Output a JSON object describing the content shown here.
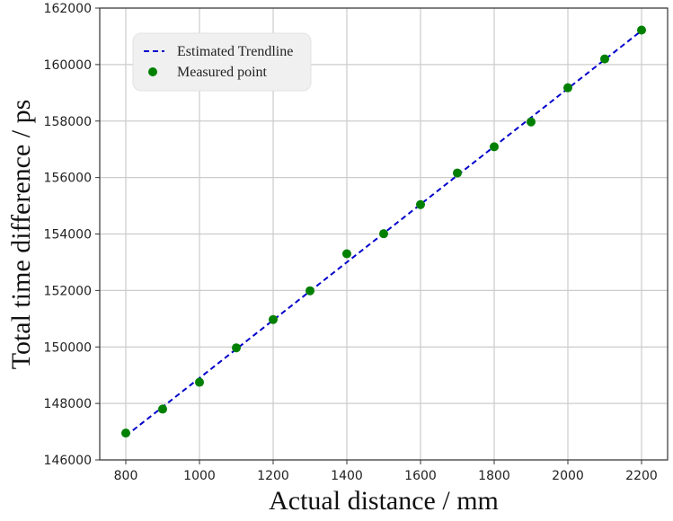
{
  "chart_data": {
    "type": "scatter",
    "title": "",
    "xlabel": "Actual distance / mm",
    "ylabel": "Total time difference / ps",
    "xlim": [
      765,
      2235
    ],
    "ylim": [
      146000,
      162000
    ],
    "x_ticks": [
      800,
      1000,
      1200,
      1400,
      1600,
      1800,
      2000,
      2200
    ],
    "y_ticks": [
      146000,
      148000,
      150000,
      152000,
      154000,
      156000,
      158000,
      160000,
      162000
    ],
    "grid": true,
    "legend_position": "upper left",
    "series": [
      {
        "name": "Estimated Trendline",
        "kind": "line",
        "style": "dashed",
        "color": "#0000cc",
        "x": [
          800,
          2200
        ],
        "values": [
          146850,
          161200
        ]
      },
      {
        "name": "Measured point",
        "kind": "scatter",
        "color": "#008000",
        "x": [
          800,
          900,
          1000,
          1100,
          1200,
          1300,
          1400,
          1500,
          1600,
          1700,
          1800,
          1900,
          2000,
          2100,
          2200
        ],
        "values": [
          146950,
          147800,
          148750,
          149970,
          150970,
          151990,
          153300,
          154010,
          155040,
          156160,
          157090,
          157970,
          159180,
          160200,
          161220
        ]
      }
    ]
  },
  "legend": {
    "items": [
      {
        "label": "Estimated Trendline",
        "marker": "dashed-line",
        "color": "#0000cc"
      },
      {
        "label": "Measured point",
        "marker": "circle",
        "color": "#008000"
      }
    ]
  }
}
